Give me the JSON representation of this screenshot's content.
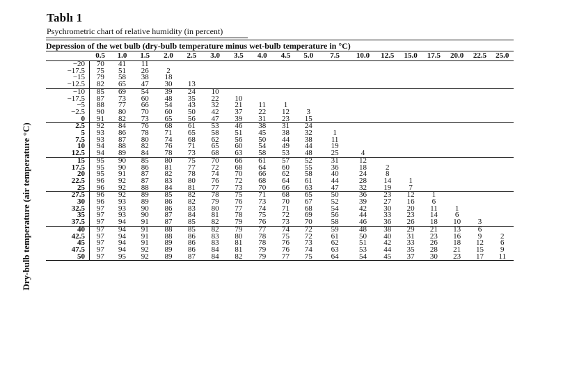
{
  "title": "Tablı    1",
  "subtitle": "Psychrometric chart of relative humidity (in percent)",
  "depression_header": "Depression of the wet bulb (dry-bulb temperature minus wet-bulb temperature in °C)",
  "y_axis_label": "Dry-bulb temperature (air temperature °C)",
  "columns": [
    "0.5",
    "1.0",
    "1.5",
    "2.0",
    "2.5",
    "3.0",
    "3.5",
    "4.0",
    "4.5",
    "5.0",
    "7.5",
    "10.0",
    "12.5",
    "15.0",
    "17.5",
    "20.0",
    "22.5",
    "25.0"
  ],
  "rows": [
    {
      "t": "−20",
      "bold": false,
      "v": [
        "70",
        "41",
        "11",
        "",
        "",
        "",
        "",
        "",
        "",
        "",
        "",
        "",
        "",
        "",
        "",
        "",
        "",
        ""
      ]
    },
    {
      "t": "−17.5",
      "bold": false,
      "v": [
        "75",
        "51",
        "26",
        "2",
        "",
        "",
        "",
        "",
        "",
        "",
        "",
        "",
        "",
        "",
        "",
        "",
        "",
        ""
      ]
    },
    {
      "t": "−15",
      "bold": false,
      "v": [
        "79",
        "58",
        "38",
        "18",
        "",
        "",
        "",
        "",
        "",
        "",
        "",
        "",
        "",
        "",
        "",
        "",
        "",
        ""
      ]
    },
    {
      "t": "−12.5",
      "bold": false,
      "v": [
        "82",
        "65",
        "47",
        "30",
        "13",
        "",
        "",
        "",
        "",
        "",
        "",
        "",
        "",
        "",
        "",
        "",
        "",
        ""
      ]
    },
    {
      "t": "−10",
      "bold": false,
      "v": [
        "85",
        "69",
        "54",
        "39",
        "24",
        "10",
        "",
        "",
        "",
        "",
        "",
        "",
        "",
        "",
        "",
        "",
        "",
        ""
      ]
    },
    {
      "t": "−17.5",
      "bold": false,
      "v": [
        "87",
        "73",
        "60",
        "48",
        "35",
        "22",
        "10",
        "",
        "",
        "",
        "",
        "",
        "",
        "",
        "",
        "",
        "",
        ""
      ]
    },
    {
      "t": "−5",
      "bold": false,
      "v": [
        "88",
        "77",
        "66",
        "54",
        "43",
        "32",
        "21",
        "11",
        "1",
        "",
        "",
        "",
        "",
        "",
        "",
        "",
        "",
        ""
      ]
    },
    {
      "t": "−2.5",
      "bold": false,
      "v": [
        "90",
        "80",
        "70",
        "60",
        "50",
        "42",
        "37",
        "22",
        "12",
        "3",
        "",
        "",
        "",
        "",
        "",
        "",
        "",
        ""
      ]
    },
    {
      "t": "0",
      "bold": true,
      "v": [
        "91",
        "82",
        "73",
        "65",
        "56",
        "47",
        "39",
        "31",
        "23",
        "15",
        "",
        "",
        "",
        "",
        "",
        "",
        "",
        ""
      ]
    },
    {
      "t": "2.5",
      "bold": true,
      "v": [
        "92",
        "84",
        "76",
        "68",
        "61",
        "53",
        "46",
        "38",
        "31",
        "24",
        "",
        "",
        "",
        "",
        "",
        "",
        "",
        ""
      ]
    },
    {
      "t": "5",
      "bold": true,
      "v": [
        "93",
        "86",
        "78",
        "71",
        "65",
        "58",
        "51",
        "45",
        "38",
        "32",
        "1",
        "",
        "",
        "",
        "",
        "",
        "",
        ""
      ]
    },
    {
      "t": "7.5",
      "bold": true,
      "v": [
        "93",
        "87",
        "80",
        "74",
        "68",
        "62",
        "56",
        "50",
        "44",
        "38",
        "11",
        "",
        "",
        "",
        "",
        "",
        "",
        ""
      ]
    },
    {
      "t": "10",
      "bold": true,
      "v": [
        "94",
        "88",
        "82",
        "76",
        "71",
        "65",
        "60",
        "54",
        "49",
        "44",
        "19",
        "",
        "",
        "",
        "",
        "",
        "",
        ""
      ]
    },
    {
      "t": "12.5",
      "bold": true,
      "v": [
        "94",
        "89",
        "84",
        "78",
        "73",
        "68",
        "63",
        "58",
        "53",
        "48",
        "25",
        "4",
        "",
        "",
        "",
        "",
        "",
        ""
      ]
    },
    {
      "t": "15",
      "bold": true,
      "v": [
        "95",
        "90",
        "85",
        "80",
        "75",
        "70",
        "66",
        "61",
        "57",
        "52",
        "31",
        "12",
        "",
        "",
        "",
        "",
        "",
        ""
      ]
    },
    {
      "t": "17.5",
      "bold": true,
      "v": [
        "95",
        "90",
        "86",
        "81",
        "77",
        "72",
        "68",
        "64",
        "60",
        "55",
        "36",
        "18",
        "2",
        "",
        "",
        "",
        "",
        ""
      ]
    },
    {
      "t": "20",
      "bold": true,
      "v": [
        "95",
        "91",
        "87",
        "82",
        "78",
        "74",
        "70",
        "66",
        "62",
        "58",
        "40",
        "24",
        "8",
        "",
        "",
        "",
        "",
        ""
      ]
    },
    {
      "t": "22.5",
      "bold": true,
      "v": [
        "96",
        "92",
        "87",
        "83",
        "80",
        "76",
        "72",
        "68",
        "64",
        "61",
        "44",
        "28",
        "14",
        "1",
        "",
        "",
        "",
        ""
      ]
    },
    {
      "t": "25",
      "bold": true,
      "v": [
        "96",
        "92",
        "88",
        "84",
        "81",
        "77",
        "73",
        "70",
        "66",
        "63",
        "47",
        "32",
        "19",
        "7",
        "",
        "",
        "",
        ""
      ]
    },
    {
      "t": "27.5",
      "bold": true,
      "v": [
        "96",
        "92",
        "89",
        "85",
        "82",
        "78",
        "75",
        "71",
        "68",
        "65",
        "50",
        "36",
        "23",
        "12",
        "1",
        "",
        "",
        ""
      ]
    },
    {
      "t": "30",
      "bold": true,
      "v": [
        "96",
        "93",
        "89",
        "86",
        "82",
        "79",
        "76",
        "73",
        "70",
        "67",
        "52",
        "39",
        "27",
        "16",
        "6",
        "",
        "",
        ""
      ]
    },
    {
      "t": "32.5",
      "bold": true,
      "v": [
        "97",
        "93",
        "90",
        "86",
        "83",
        "80",
        "77",
        "74",
        "71",
        "68",
        "54",
        "42",
        "30",
        "20",
        "11",
        "1",
        "",
        ""
      ]
    },
    {
      "t": "35",
      "bold": true,
      "v": [
        "97",
        "93",
        "90",
        "87",
        "84",
        "81",
        "78",
        "75",
        "72",
        "69",
        "56",
        "44",
        "33",
        "23",
        "14",
        "6",
        "",
        ""
      ]
    },
    {
      "t": "37.5",
      "bold": true,
      "v": [
        "97",
        "94",
        "91",
        "87",
        "85",
        "82",
        "79",
        "76",
        "73",
        "70",
        "58",
        "46",
        "36",
        "26",
        "18",
        "10",
        "3",
        ""
      ]
    },
    {
      "t": "40",
      "bold": true,
      "v": [
        "97",
        "94",
        "91",
        "88",
        "85",
        "82",
        "79",
        "77",
        "74",
        "72",
        "59",
        "48",
        "38",
        "29",
        "21",
        "13",
        "6",
        ""
      ]
    },
    {
      "t": "42.5",
      "bold": true,
      "v": [
        "97",
        "94",
        "91",
        "88",
        "86",
        "83",
        "80",
        "78",
        "75",
        "72",
        "61",
        "50",
        "40",
        "31",
        "23",
        "16",
        "9",
        "2"
      ]
    },
    {
      "t": "45",
      "bold": true,
      "v": [
        "97",
        "94",
        "91",
        "89",
        "86",
        "83",
        "81",
        "78",
        "76",
        "73",
        "62",
        "51",
        "42",
        "33",
        "26",
        "18",
        "12",
        "6"
      ]
    },
    {
      "t": "47.5",
      "bold": true,
      "v": [
        "97",
        "94",
        "92",
        "89",
        "86",
        "84",
        "81",
        "79",
        "76",
        "74",
        "63",
        "53",
        "44",
        "35",
        "28",
        "21",
        "15",
        "9"
      ]
    },
    {
      "t": "50",
      "bold": true,
      "v": [
        "97",
        "95",
        "92",
        "89",
        "87",
        "84",
        "82",
        "79",
        "77",
        "75",
        "64",
        "54",
        "45",
        "37",
        "30",
        "23",
        "17",
        "11"
      ]
    }
  ]
}
